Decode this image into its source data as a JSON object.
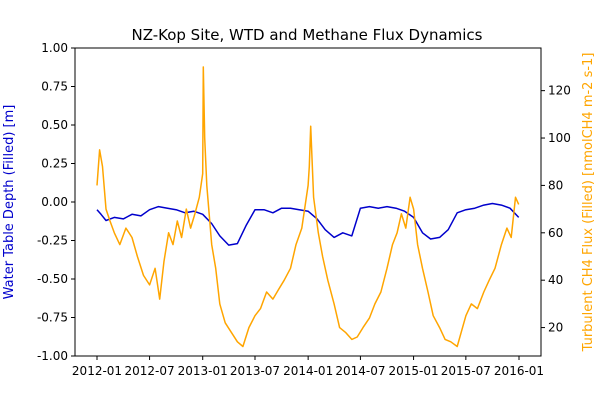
{
  "chart_data": {
    "type": "line",
    "title": "NZ-Kop Site, WTD and Methane Flux Dynamics",
    "x_ticks": [
      "2012-01",
      "2012-07",
      "2013-01",
      "2013-07",
      "2014-01",
      "2014-07",
      "2015-01",
      "2015-07",
      "2016-01"
    ],
    "left_axis": {
      "label": "Water Table Depth (Filled) [m]",
      "color": "#0000cc",
      "ylim": [
        -1.0,
        1.0
      ],
      "ticks": [
        "1.00",
        "0.75",
        "0.50",
        "0.25",
        "0.00",
        "-0.25",
        "-0.50",
        "-0.75",
        "-1.00"
      ]
    },
    "right_axis": {
      "label": "Turbulent CH4 Flux (Filled) [nmolCH4 m-2 s-1]",
      "color": "#ffa500",
      "ylim": [
        8,
        138
      ],
      "ticks": [
        "120",
        "100",
        "80",
        "60",
        "40",
        "20"
      ]
    },
    "series": [
      {
        "axis": "left",
        "color": "#0000cc",
        "x": [
          "2012-01-01",
          "2012-01-15",
          "2012-02-01",
          "2012-03-01",
          "2012-04-01",
          "2012-05-01",
          "2012-06-01",
          "2012-07-01",
          "2012-08-01",
          "2012-09-01",
          "2012-10-01",
          "2012-11-01",
          "2012-12-01",
          "2013-01-01",
          "2013-02-01",
          "2013-03-01",
          "2013-04-01",
          "2013-05-01",
          "2013-06-01",
          "2013-07-01",
          "2013-08-01",
          "2013-09-01",
          "2013-10-01",
          "2013-11-01",
          "2013-12-01",
          "2014-01-01",
          "2014-02-01",
          "2014-03-01",
          "2014-04-01",
          "2014-05-01",
          "2014-06-01",
          "2014-07-01",
          "2014-08-01",
          "2014-09-01",
          "2014-10-01",
          "2014-11-01",
          "2014-12-01",
          "2015-01-01",
          "2015-02-01",
          "2015-03-01",
          "2015-04-01",
          "2015-05-01",
          "2015-06-01",
          "2015-07-01",
          "2015-08-01",
          "2015-09-01",
          "2015-10-01",
          "2015-11-01",
          "2015-12-01",
          "2015-12-31"
        ],
        "values": [
          -0.05,
          -0.08,
          -0.12,
          -0.1,
          -0.11,
          -0.08,
          -0.09,
          -0.05,
          -0.03,
          -0.04,
          -0.05,
          -0.07,
          -0.06,
          -0.08,
          -0.14,
          -0.22,
          -0.28,
          -0.27,
          -0.15,
          -0.05,
          -0.05,
          -0.07,
          -0.04,
          -0.04,
          -0.05,
          -0.06,
          -0.11,
          -0.18,
          -0.23,
          -0.2,
          -0.22,
          -0.04,
          -0.03,
          -0.04,
          -0.03,
          -0.04,
          -0.06,
          -0.1,
          -0.2,
          -0.24,
          -0.23,
          -0.18,
          -0.07,
          -0.05,
          -0.04,
          -0.02,
          -0.01,
          -0.02,
          -0.04,
          -0.1
        ]
      },
      {
        "axis": "right",
        "color": "#ffa500",
        "x": [
          "2012-01-01",
          "2012-01-10",
          "2012-01-20",
          "2012-02-01",
          "2012-02-15",
          "2012-03-01",
          "2012-03-20",
          "2012-04-10",
          "2012-05-01",
          "2012-05-20",
          "2012-06-10",
          "2012-07-01",
          "2012-07-20",
          "2012-08-05",
          "2012-08-20",
          "2012-09-05",
          "2012-09-20",
          "2012-10-05",
          "2012-10-20",
          "2012-11-05",
          "2012-11-20",
          "2012-12-05",
          "2012-12-20",
          "2013-01-01",
          "2013-01-03",
          "2013-01-08",
          "2013-01-15",
          "2013-02-01",
          "2013-02-15",
          "2013-03-01",
          "2013-03-20",
          "2013-04-10",
          "2013-05-01",
          "2013-05-20",
          "2013-06-10",
          "2013-07-01",
          "2013-07-20",
          "2013-08-10",
          "2013-09-01",
          "2013-09-20",
          "2013-10-10",
          "2013-11-01",
          "2013-11-20",
          "2013-12-10",
          "2014-01-01",
          "2014-01-05",
          "2014-01-10",
          "2014-01-20",
          "2014-02-05",
          "2014-02-20",
          "2014-03-10",
          "2014-04-01",
          "2014-04-20",
          "2014-05-10",
          "2014-06-01",
          "2014-06-20",
          "2014-07-10",
          "2014-08-01",
          "2014-08-20",
          "2014-09-10",
          "2014-10-01",
          "2014-10-20",
          "2014-11-05",
          "2014-11-20",
          "2014-12-05",
          "2014-12-20",
          "2015-01-01",
          "2015-01-15",
          "2015-02-01",
          "2015-02-20",
          "2015-03-10",
          "2015-04-01",
          "2015-04-20",
          "2015-05-10",
          "2015-06-01",
          "2015-06-15",
          "2015-07-01",
          "2015-07-20",
          "2015-08-10",
          "2015-09-01",
          "2015-09-20",
          "2015-10-10",
          "2015-11-01",
          "2015-11-20",
          "2015-12-05",
          "2015-12-20",
          "2015-12-31"
        ],
        "values": [
          80,
          95,
          88,
          70,
          65,
          60,
          55,
          62,
          58,
          50,
          42,
          38,
          45,
          32,
          48,
          60,
          55,
          65,
          58,
          70,
          62,
          68,
          75,
          85,
          130,
          100,
          80,
          55,
          45,
          30,
          22,
          18,
          14,
          12,
          20,
          25,
          28,
          35,
          32,
          36,
          40,
          45,
          55,
          62,
          80,
          88,
          105,
          75,
          60,
          50,
          40,
          30,
          20,
          18,
          15,
          16,
          20,
          24,
          30,
          35,
          45,
          55,
          60,
          68,
          62,
          75,
          70,
          55,
          45,
          35,
          25,
          20,
          15,
          14,
          12,
          18,
          25,
          30,
          28,
          35,
          40,
          45,
          55,
          62,
          58,
          75,
          72
        ]
      }
    ]
  }
}
